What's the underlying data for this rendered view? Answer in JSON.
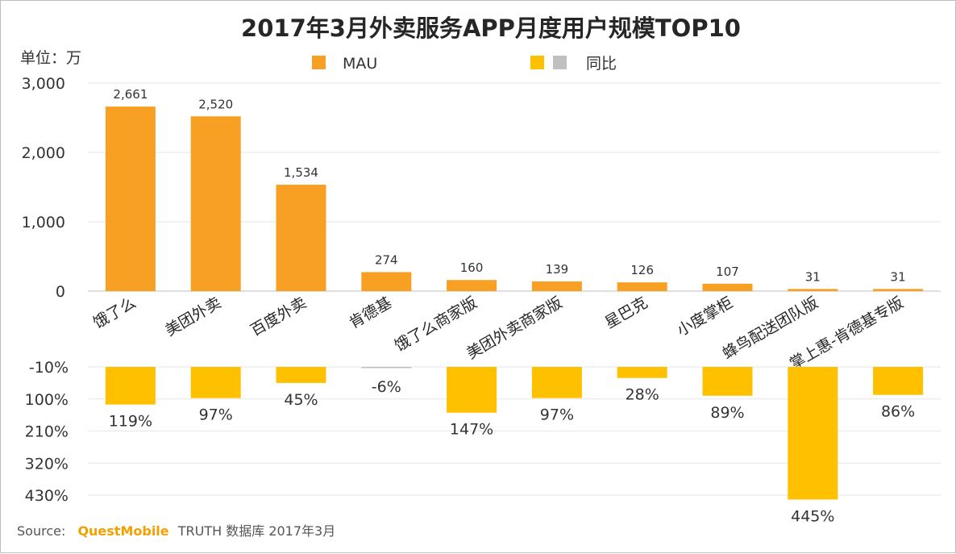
{
  "chart_data": [
    {
      "type": "bar",
      "title": "2017年3月外卖服务APP月度用户规模TOP10",
      "unit_label": "单位：万",
      "categories": [
        "饿了么",
        "美团外卖",
        "百度外卖",
        "肯德基",
        "饿了么商家版",
        "美团外卖商家版",
        "星巴克",
        "小度掌柜",
        "蜂鸟配送团队版",
        "掌上惠-肯德基专版"
      ],
      "series": [
        {
          "name": "MAU",
          "values": [
            2661,
            2520,
            1534,
            274,
            160,
            139,
            126,
            107,
            31,
            31
          ],
          "labels": [
            "2,661",
            "2,520",
            "1,534",
            "274",
            "160",
            "139",
            "126",
            "107",
            "31",
            "31"
          ]
        }
      ],
      "ylim": [
        0,
        3000
      ],
      "yticks": [
        0,
        1000,
        2000,
        3000
      ],
      "ytick_labels": [
        "0",
        "1,000",
        "2,000",
        "3,000"
      ],
      "grid": true
    },
    {
      "type": "bar",
      "categories": [
        "饿了么",
        "美团外卖",
        "百度外卖",
        "肯德基",
        "饿了么商家版",
        "美团外卖商家版",
        "星巴克",
        "小度掌柜",
        "蜂鸟配送团队版",
        "掌上惠-肯德基专版"
      ],
      "series": [
        {
          "name": "同比",
          "values": [
            119,
            97,
            45,
            -6,
            147,
            97,
            28,
            89,
            445,
            86
          ],
          "labels": [
            "119%",
            "97%",
            "45%",
            "-6%",
            "147%",
            "97%",
            "28%",
            "89%",
            "445%",
            "86%"
          ]
        }
      ],
      "ylim": [
        -10,
        430
      ],
      "inverted": true,
      "yticks": [
        -10,
        100,
        210,
        320,
        430
      ],
      "ytick_labels": [
        "-10%",
        "100%",
        "210%",
        "320%",
        "430%"
      ],
      "grid": true
    }
  ],
  "legend": {
    "mau_label": "MAU",
    "yoy_label": "同比"
  },
  "colors": {
    "mau": "#f7a023",
    "yoy_positive": "#ffc000",
    "yoy_negative": "#c0c0c0",
    "grid": "#e6e6e6",
    "axis_text": "#333333"
  },
  "footer": {
    "source_prefix": "Source:",
    "brand": "QuestMobile",
    "source_rest": "TRUTH 数据库 2017年3月"
  }
}
